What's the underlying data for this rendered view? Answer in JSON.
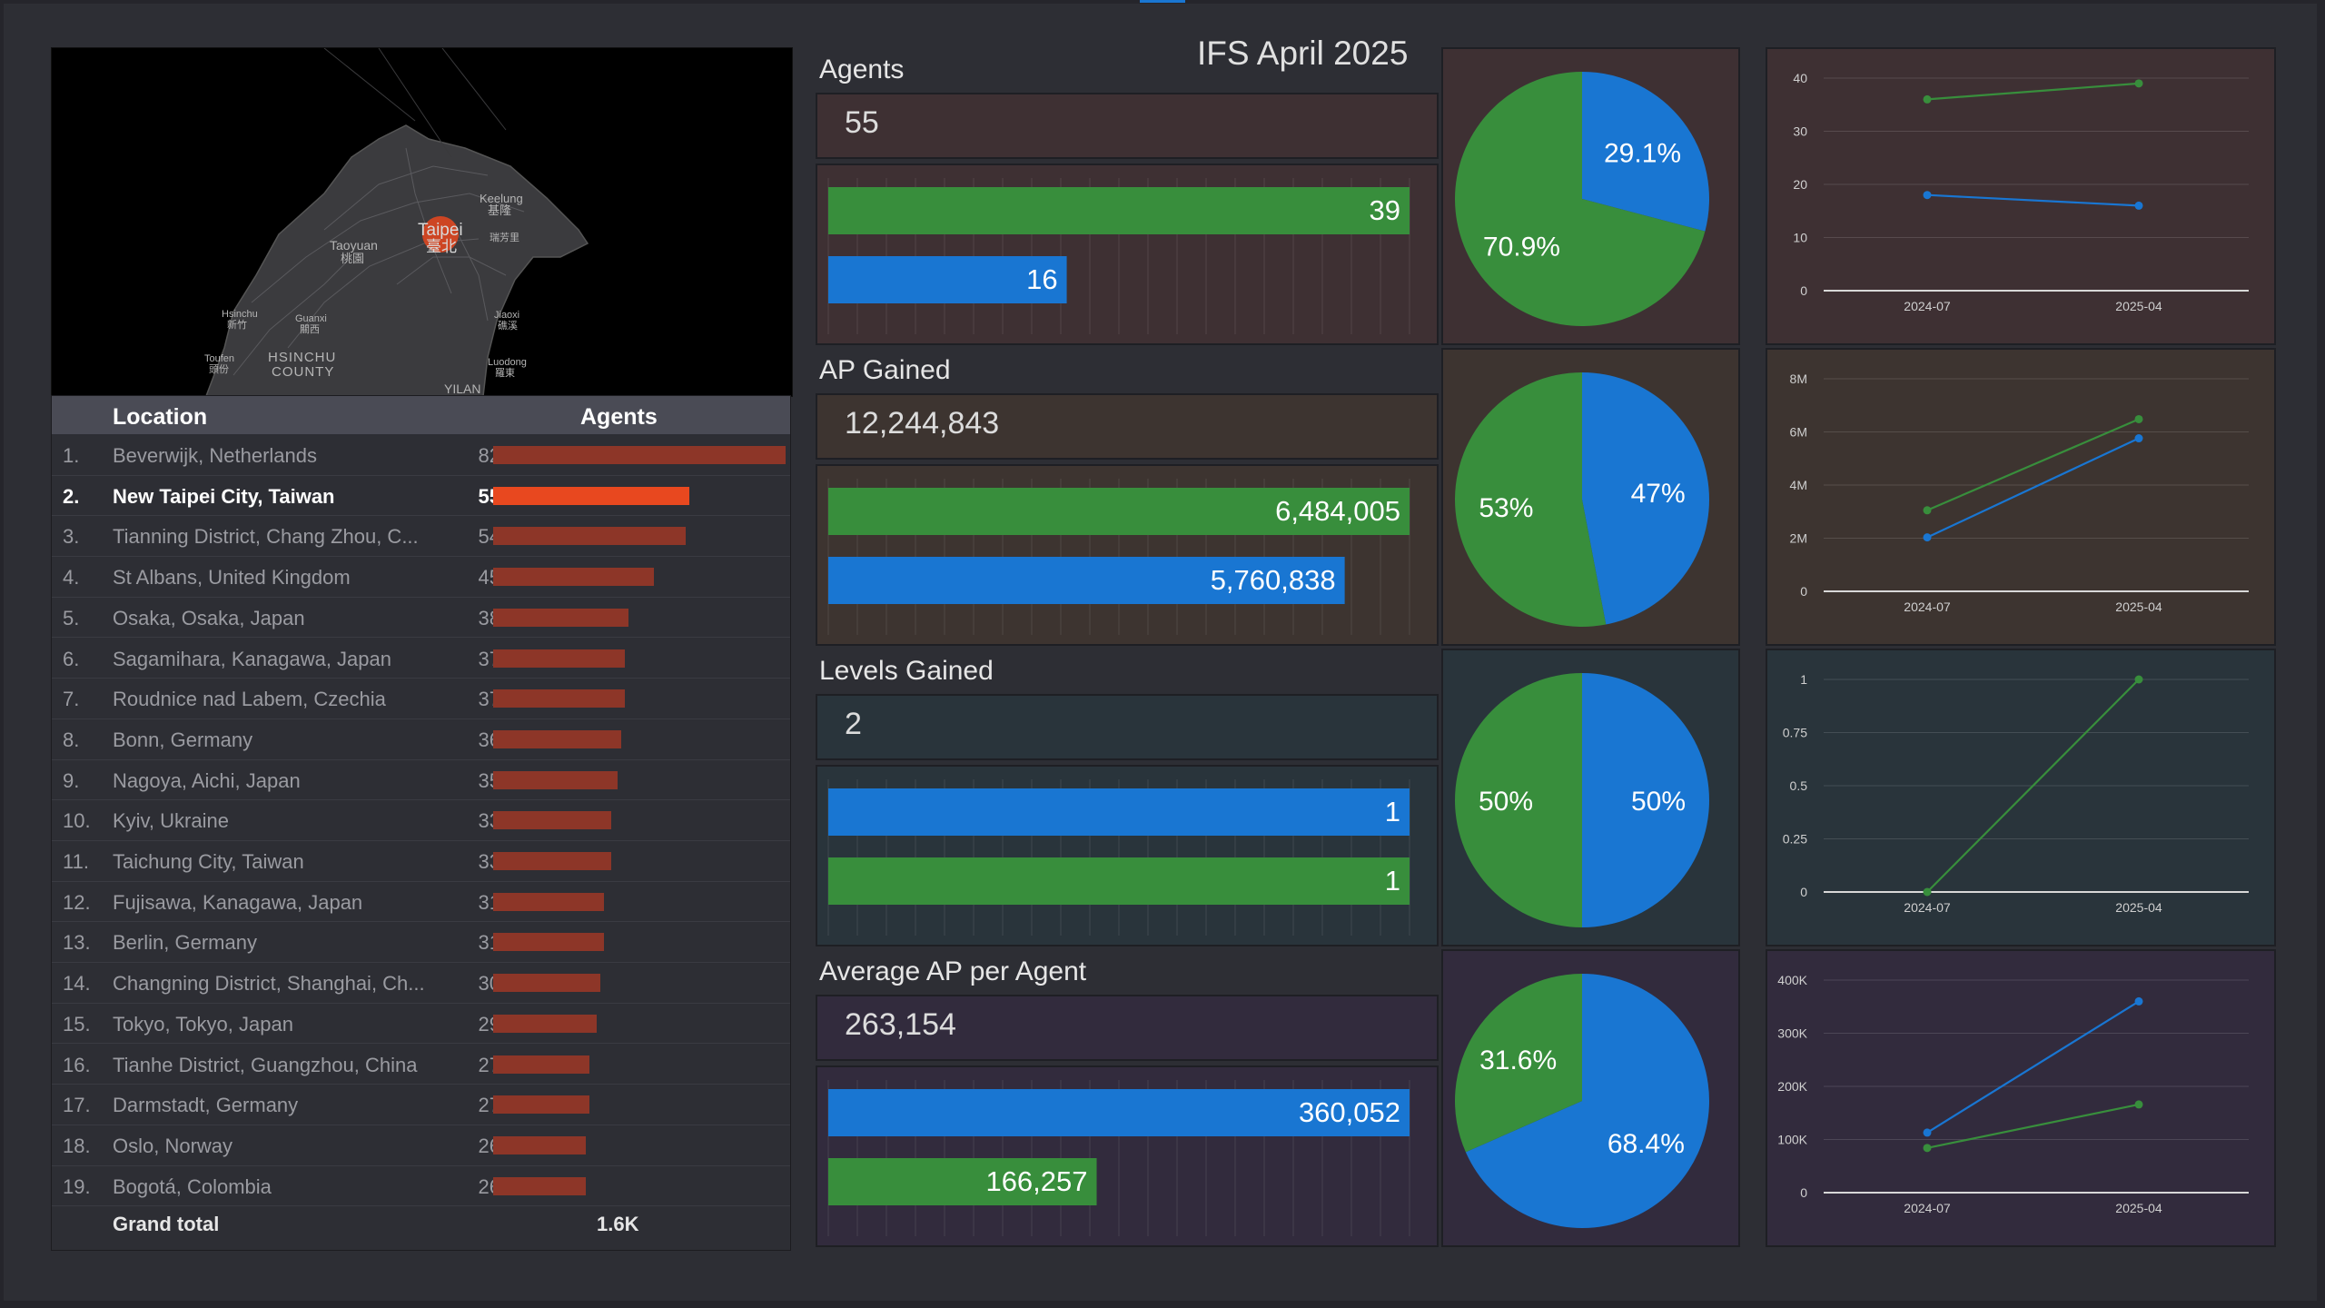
{
  "header": {
    "title": "IFS April 2025"
  },
  "colors": {
    "green": "#388e3c",
    "blue": "#1976d2",
    "accent": "#e8481f",
    "bar": "#8d3628"
  },
  "map": {
    "labels": [
      {
        "id": "taipei",
        "text": "Taipei"
      },
      {
        "id": "taipei-zh",
        "text": "臺北"
      },
      {
        "id": "keelung",
        "text": "Keelung"
      },
      {
        "id": "keelung-zh",
        "text": "基隆"
      },
      {
        "id": "taoyuan",
        "text": "Taoyuan"
      },
      {
        "id": "taoyuan-zh",
        "text": "桃園"
      },
      {
        "id": "hsinchu",
        "text": "Hsinchu"
      },
      {
        "id": "hsinchu-zh",
        "text": "新竹"
      },
      {
        "id": "guanxi",
        "text": "Guanxi"
      },
      {
        "id": "guanxi-zh",
        "text": "關西"
      },
      {
        "id": "jiaoxi",
        "text": "Jiaoxi"
      },
      {
        "id": "jiaoxi-zh",
        "text": "礁溪"
      },
      {
        "id": "toufen",
        "text": "Toufen"
      },
      {
        "id": "toufen-zh",
        "text": "頭份"
      },
      {
        "id": "hsinchu-county",
        "text": "HSINCHU"
      },
      {
        "id": "hsinchu-county2",
        "text": "COUNTY"
      },
      {
        "id": "luodong",
        "text": "Luodong"
      },
      {
        "id": "luodong-zh",
        "text": "羅東"
      },
      {
        "id": "yilan",
        "text": "YILAN"
      },
      {
        "id": "ruifang",
        "text": "瑞芳里"
      }
    ]
  },
  "table": {
    "headers": {
      "location": "Location",
      "agents": "Agents"
    },
    "max": 82,
    "rows": [
      {
        "rank": "1.",
        "location": "Beverwijk, Netherlands",
        "agents": 82
      },
      {
        "rank": "2.",
        "location": "New Taipei City, Taiwan",
        "agents": 55,
        "selected": true
      },
      {
        "rank": "3.",
        "location": "Tianning District, Chang Zhou, C...",
        "agents": 54
      },
      {
        "rank": "4.",
        "location": "St Albans, United Kingdom",
        "agents": 45
      },
      {
        "rank": "5.",
        "location": "Osaka, Osaka, Japan",
        "agents": 38
      },
      {
        "rank": "6.",
        "location": "Sagamihara, Kanagawa, Japan",
        "agents": 37
      },
      {
        "rank": "7.",
        "location": "Roudnice nad Labem, Czechia",
        "agents": 37
      },
      {
        "rank": "8.",
        "location": "Bonn, Germany",
        "agents": 36
      },
      {
        "rank": "9.",
        "location": "Nagoya, Aichi, Japan",
        "agents": 35
      },
      {
        "rank": "10.",
        "location": "Kyiv, Ukraine",
        "agents": 33
      },
      {
        "rank": "11.",
        "location": "Taichung City, Taiwan",
        "agents": 33
      },
      {
        "rank": "12.",
        "location": "Fujisawa, Kanagawa, Japan",
        "agents": 31
      },
      {
        "rank": "13.",
        "location": "Berlin, Germany",
        "agents": 31
      },
      {
        "rank": "14.",
        "location": "Changning District, Shanghai, Ch...",
        "agents": 30
      },
      {
        "rank": "15.",
        "location": "Tokyo, Tokyo, Japan",
        "agents": 29
      },
      {
        "rank": "16.",
        "location": "Tianhe District, Guangzhou, China",
        "agents": 27
      },
      {
        "rank": "17.",
        "location": "Darmstadt, Germany",
        "agents": 27
      },
      {
        "rank": "18.",
        "location": "Oslo, Norway",
        "agents": 26
      },
      {
        "rank": "19.",
        "location": "Bogotá, Colombia",
        "agents": 26
      }
    ],
    "total": {
      "label": "Grand total",
      "value": "1.6K"
    }
  },
  "metrics": [
    {
      "id": "agents",
      "title": "Agents",
      "value": "55",
      "bg": "#3e3033",
      "bars": [
        {
          "value": 39,
          "label": "39",
          "color": "green"
        },
        {
          "value": 16,
          "label": "16",
          "color": "blue"
        }
      ],
      "pie": [
        {
          "label": "29.1%",
          "value": 29.1,
          "color": "blue"
        },
        {
          "label": "70.9%",
          "value": 70.9,
          "color": "green"
        }
      ],
      "line": {
        "x": [
          "2024-07",
          "2025-04"
        ],
        "yticks": [
          "0",
          "10",
          "20",
          "30",
          "40"
        ],
        "ymax": 40,
        "series": [
          {
            "color": "green",
            "values": [
              36,
              39
            ]
          },
          {
            "color": "blue",
            "values": [
              18,
              16
            ]
          }
        ]
      }
    },
    {
      "id": "ap-gained",
      "title": "AP Gained",
      "value": "12,244,843",
      "bg": "#3d3430",
      "bars": [
        {
          "value": 6484005,
          "label": "6,484,005",
          "color": "green"
        },
        {
          "value": 5760838,
          "label": "5,760,838",
          "color": "blue"
        }
      ],
      "pie": [
        {
          "label": "47%",
          "value": 47,
          "color": "blue"
        },
        {
          "label": "53%",
          "value": 53,
          "color": "green"
        }
      ],
      "line": {
        "x": [
          "2024-07",
          "2025-04"
        ],
        "yticks": [
          "0",
          "2M",
          "4M",
          "6M",
          "8M"
        ],
        "ymax": 8000000,
        "series": [
          {
            "color": "green",
            "values": [
              3050000,
              6480000
            ]
          },
          {
            "color": "blue",
            "values": [
              2030000,
              5760000
            ]
          }
        ]
      }
    },
    {
      "id": "levels-gained",
      "title": "Levels Gained",
      "value": "2",
      "bg": "#29343b",
      "bars": [
        {
          "value": 1,
          "label": "1",
          "color": "blue"
        },
        {
          "value": 1,
          "label": "1",
          "color": "green"
        }
      ],
      "pie": [
        {
          "label": "50%",
          "value": 50,
          "color": "blue"
        },
        {
          "label": "50%",
          "value": 50,
          "color": "green"
        }
      ],
      "line": {
        "x": [
          "2024-07",
          "2025-04"
        ],
        "yticks": [
          "0",
          "0.25",
          "0.5",
          "0.75",
          "1"
        ],
        "ymax": 1,
        "series": [
          {
            "color": "green",
            "values": [
              0,
              1
            ]
          }
        ]
      }
    },
    {
      "id": "avg-ap",
      "title": "Average AP per Agent",
      "value": "263,154",
      "bg": "#322b3d",
      "bars": [
        {
          "value": 360052,
          "label": "360,052",
          "color": "blue"
        },
        {
          "value": 166257,
          "label": "166,257",
          "color": "green"
        }
      ],
      "pie": [
        {
          "label": "68.4%",
          "value": 68.4,
          "color": "blue"
        },
        {
          "label": "31.6%",
          "value": 31.6,
          "color": "green"
        }
      ],
      "line": {
        "x": [
          "2024-07",
          "2025-04"
        ],
        "yticks": [
          "0",
          "100K",
          "200K",
          "300K",
          "400K"
        ],
        "ymax": 400000,
        "series": [
          {
            "color": "blue",
            "values": [
              113000,
              360000
            ]
          },
          {
            "color": "green",
            "values": [
              84000,
              166000
            ]
          }
        ]
      }
    }
  ]
}
